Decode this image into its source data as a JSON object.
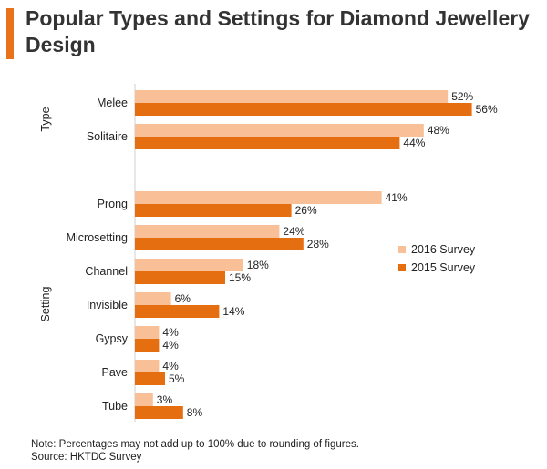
{
  "page": {
    "title": "Popular Types and Settings for Diamond Jewellery Design",
    "notes": [
      "Note: Percentages may not add up to 100% due to rounding of figures.",
      "Source: HKTDC Survey"
    ]
  },
  "chart_data": {
    "type": "bar",
    "orientation": "horizontal",
    "title": "Popular Types and Settings for Diamond Jewellery Design",
    "categories": [
      "Melee",
      "Solitaire",
      "Prong",
      "Microsetting",
      "Channel",
      "Invisible",
      "Gypsy",
      "Pave",
      "Tube"
    ],
    "groups": [
      {
        "label": "Type",
        "categories": [
          "Melee",
          "Solitaire"
        ]
      },
      {
        "label": "Setting",
        "categories": [
          "Prong",
          "Microsetting",
          "Channel",
          "Invisible",
          "Gypsy",
          "Pave",
          "Tube"
        ]
      }
    ],
    "series": [
      {
        "name": "2016 Survey",
        "color": "#f9bf97",
        "values": [
          52,
          48,
          41,
          24,
          18,
          6,
          4,
          4,
          3
        ]
      },
      {
        "name": "2015 Survey",
        "color": "#e46e10",
        "values": [
          56,
          44,
          26,
          28,
          15,
          14,
          4,
          5,
          8
        ]
      }
    ],
    "value_suffix": "%",
    "xlim": [
      0,
      60
    ],
    "grid": false,
    "legend_position": "right"
  }
}
